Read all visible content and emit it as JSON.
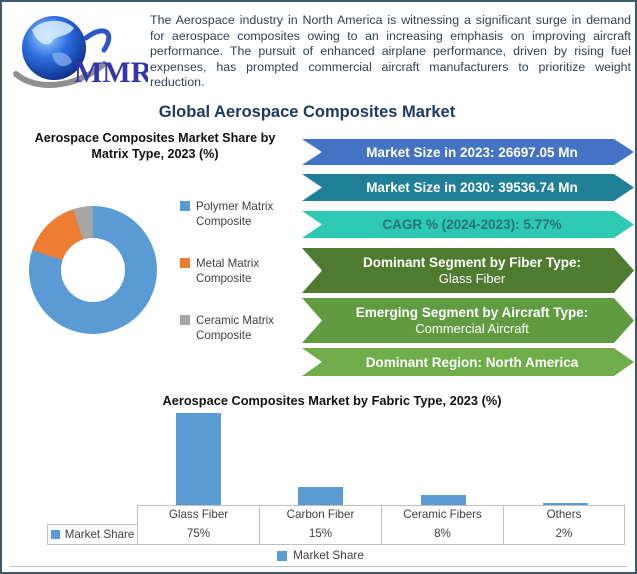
{
  "logo": {
    "brand": "MMR"
  },
  "intro": {
    "text": "The Aerospace industry in North America is witnessing a significant surge in demand for aerospace composites owing to an increasing emphasis on improving aircraft performance. The pursuit of enhanced airplane performance, driven by rising fuel expenses, has prompted commercial aircraft manufacturers to prioritize weight reduction."
  },
  "title": "Global Aerospace Composites Market",
  "banners": [
    {
      "lines": [
        "Market Size in 2023: 26697.05 Mn"
      ],
      "color": "#4472c4",
      "text_color": "#ffffff"
    },
    {
      "lines": [
        "Market Size in 2030: 39536.74 Mn"
      ],
      "color": "#1f7f96",
      "text_color": "#ffffff"
    },
    {
      "lines": [
        "CAGR % (2024-2023): 5.77%"
      ],
      "color": "#2ec9b3",
      "text_color": "#26727f"
    },
    {
      "lines": [
        "Dominant Segment by Fiber Type:",
        "Glass Fiber"
      ],
      "color": "#4e7b30",
      "text_color": "#ffffff"
    },
    {
      "lines": [
        "Emerging Segment by Aircraft Type:",
        "Commercial Aircraft"
      ],
      "color": "#609b42",
      "text_color": "#ffffff"
    },
    {
      "lines": [
        "Dominant Region: North America"
      ],
      "color": "#6ead49",
      "text_color": "#ffffff"
    }
  ],
  "chart_data": [
    {
      "type": "pie",
      "title": "Aerospace Composites Market Share by Matrix Type, 2023 (%)",
      "labels": [
        "Polymer Matrix Composite",
        "Metal Matrix Composite",
        "Ceramic Matrix Composite"
      ],
      "values": [
        80,
        15,
        5
      ],
      "colors": [
        "#5b9bd5",
        "#ed7d31",
        "#a6a6a6"
      ],
      "hole": 0.5,
      "legend_position": "right"
    },
    {
      "type": "bar",
      "title": "Aerospace Composites Market by Fabric Type, 2023 (%)",
      "categories": [
        "Glass Fiber",
        "Carbon Fiber",
        "Ceramic Fibers",
        "Others"
      ],
      "series": [
        {
          "name": "Market Share",
          "values": [
            75,
            15,
            8,
            2
          ]
        }
      ],
      "value_labels": [
        "75%",
        "15%",
        "8%",
        "2%"
      ],
      "bar_color": "#5b9bd5",
      "ylim": [
        0,
        80
      ],
      "grid": false,
      "data_table_shown": true,
      "legend_label": "Market Share",
      "legend_position": "bottom"
    }
  ]
}
